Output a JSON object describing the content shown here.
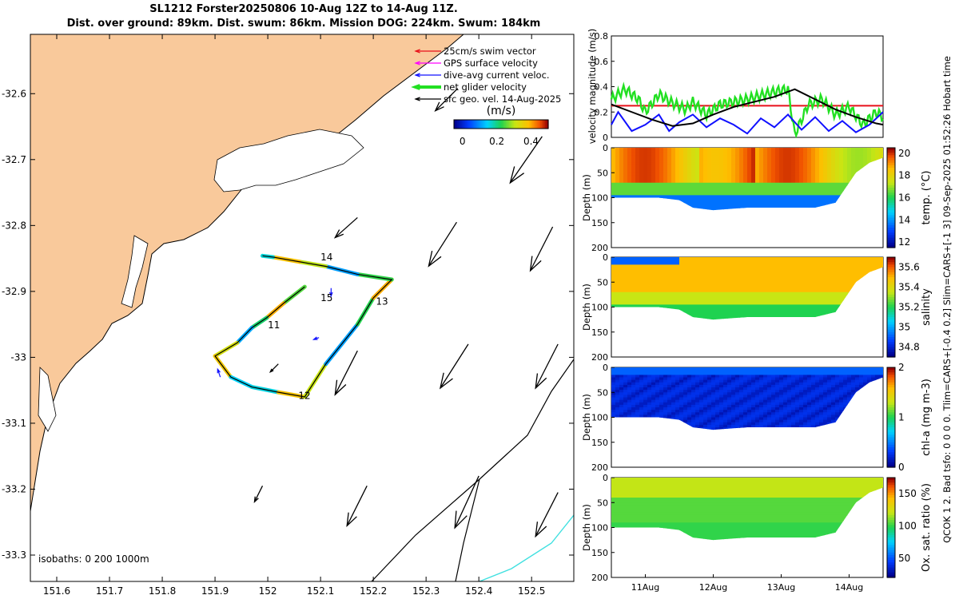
{
  "title": {
    "line1": "SL1212 Forster20250806 10-Aug 12Z to 14-Aug 11Z.",
    "line2": "Dist. over ground: 89km. Dist. swum: 86km. Mission DOG: 224km. Swum: 184km"
  },
  "side_note": "QCOK 1  2. Bad tsfo: 0  0  0  0. Tlim=CARS+[-0.4 0.2] Slim=CARS+[-1 3] 09-Sep-2025 01:52:26 Hobart time",
  "colors": {
    "land": "#f9c99b",
    "swim": "#e8101a",
    "gps": "#ff00ff",
    "dive": "#1010ff",
    "net": "#22e022",
    "geo": "#000000",
    "isobath1000": "#40e0e0"
  },
  "chart_data": [
    {
      "type": "map",
      "lon_ticks": [
        "151.6",
        "151.7",
        "151.8",
        "151.9",
        "152",
        "152.1",
        "152.2",
        "152.3",
        "152.4",
        "152.5"
      ],
      "lat_ticks": [
        "-32.6",
        "-32.7",
        "-32.8",
        "-32.9",
        "-33",
        "-33.1",
        "-33.2",
        "-33.3"
      ],
      "xlim": [
        151.55,
        152.58
      ],
      "ylim": [
        -33.34,
        -32.51
      ],
      "legend": [
        "25cm/s swim vector",
        "GPS surface velocity",
        "dive-avg current veloc.",
        "net glider velocity",
        "sfc geo. vel. 14-Aug-2025"
      ],
      "colorbar_label": "(m/s)",
      "colorbar_ticks": [
        "0",
        "0.2",
        "0.4"
      ],
      "colorbar_range": [
        -0.05,
        0.5
      ],
      "isobath_label": "isobaths: 0   200  1000m",
      "track_day_labels": [
        {
          "text": "14",
          "lon": 152.1,
          "lat": -32.853
        },
        {
          "text": "15",
          "lon": 152.1,
          "lat": -32.915
        },
        {
          "text": "13",
          "lon": 152.205,
          "lat": -32.92
        },
        {
          "text": "11",
          "lon": 152.0,
          "lat": -32.956
        },
        {
          "text": "12",
          "lon": 152.058,
          "lat": -33.063
        }
      ],
      "track": [
        [
          152.07,
          -32.893
        ],
        [
          152.03,
          -32.918
        ],
        [
          151.998,
          -32.94
        ],
        [
          151.97,
          -32.955
        ],
        [
          151.942,
          -32.978
        ],
        [
          151.9,
          -32.998
        ],
        [
          151.93,
          -33.03
        ],
        [
          151.97,
          -33.045
        ],
        [
          152.02,
          -33.053
        ],
        [
          152.07,
          -33.06
        ],
        [
          152.11,
          -33.01
        ],
        [
          152.17,
          -32.95
        ],
        [
          152.2,
          -32.91
        ],
        [
          152.235,
          -32.882
        ],
        [
          152.17,
          -32.874
        ],
        [
          152.11,
          -32.862
        ],
        [
          152.06,
          -32.855
        ],
        [
          152.01,
          -32.848
        ],
        [
          151.99,
          -32.846
        ]
      ],
      "geo_arrows": [
        [
          152.36,
          -32.592,
          -0.28,
          -0.28
        ],
        [
          152.52,
          -32.665,
          -0.4,
          -0.58
        ],
        [
          152.17,
          -32.788,
          -0.28,
          -0.25
        ],
        [
          152.358,
          -32.795,
          -0.35,
          -0.55
        ],
        [
          152.54,
          -32.802,
          -0.28,
          -0.55
        ],
        [
          152.17,
          -32.99,
          -0.28,
          -0.55
        ],
        [
          152.38,
          -32.98,
          -0.35,
          -0.55
        ],
        [
          152.55,
          -32.98,
          -0.28,
          -0.55
        ],
        [
          151.99,
          -33.195,
          -0.1,
          -0.2
        ],
        [
          152.188,
          -33.195,
          -0.25,
          -0.5
        ],
        [
          152.4,
          -33.18,
          -0.3,
          -0.65
        ],
        [
          152.55,
          -33.205,
          -0.28,
          -0.55
        ],
        [
          152.02,
          -33.01,
          -0.1,
          -0.1
        ]
      ]
    },
    {
      "type": "line",
      "ylabel": "velocity magnitude (m/s)",
      "ylim": [
        0,
        0.8
      ],
      "yticks": [
        "0",
        "0.2",
        "0.4",
        "0.6",
        "0.8"
      ],
      "xlim": [
        10.5,
        14.5
      ],
      "series": [
        {
          "name": "25cm/s swim vector",
          "color": "#e8101a",
          "x": [
            10.5,
            14.5
          ],
          "y": [
            0.25,
            0.25
          ]
        },
        {
          "name": "net glider velocity",
          "color": "#22e022",
          "x": [
            10.5,
            10.7,
            10.9,
            11.0,
            11.2,
            11.4,
            11.6,
            11.7,
            11.9,
            12.1,
            12.3,
            12.5,
            12.7,
            12.9,
            13.1,
            13.2,
            13.4,
            13.6,
            13.8,
            14.0,
            14.2,
            14.4,
            14.5
          ],
          "y": [
            0.3,
            0.38,
            0.3,
            0.2,
            0.34,
            0.27,
            0.22,
            0.28,
            0.18,
            0.26,
            0.28,
            0.3,
            0.33,
            0.36,
            0.38,
            0.02,
            0.26,
            0.3,
            0.18,
            0.24,
            0.1,
            0.2,
            0.16
          ]
        },
        {
          "name": "dive-avg current veloc.",
          "color": "#1010ff",
          "x": [
            10.5,
            10.6,
            10.8,
            11.0,
            11.2,
            11.35,
            11.5,
            11.7,
            11.9,
            12.1,
            12.3,
            12.5,
            12.7,
            12.9,
            13.1,
            13.3,
            13.5,
            13.7,
            13.9,
            14.1,
            14.3,
            14.5
          ],
          "y": [
            0.1,
            0.2,
            0.05,
            0.1,
            0.18,
            0.05,
            0.12,
            0.18,
            0.08,
            0.15,
            0.1,
            0.03,
            0.15,
            0.08,
            0.18,
            0.06,
            0.16,
            0.05,
            0.13,
            0.04,
            0.1,
            0.2
          ]
        },
        {
          "name": "GPS/sfc velocity",
          "color": "#000000",
          "x": [
            10.5,
            10.8,
            11.1,
            11.4,
            11.7,
            12.0,
            12.3,
            12.6,
            12.9,
            13.2,
            13.5,
            13.8,
            14.1,
            14.4,
            14.5
          ],
          "y": [
            0.26,
            0.2,
            0.14,
            0.09,
            0.11,
            0.18,
            0.24,
            0.28,
            0.32,
            0.38,
            0.3,
            0.22,
            0.16,
            0.11,
            0.1
          ]
        }
      ]
    },
    {
      "type": "heatmap",
      "ylabel": "Depth (m)",
      "cbar_label": "temp. (°C)",
      "cbar_ticks": [
        "12",
        "14",
        "16",
        "18",
        "20"
      ],
      "clim": [
        11.5,
        20.5
      ],
      "ylim": [
        200,
        0
      ],
      "yticks": [
        "0",
        "50",
        "100",
        "150",
        "200"
      ],
      "surface": [
        [
          10.5,
          0
        ],
        [
          14.1,
          0
        ],
        [
          14.3,
          10
        ],
        [
          14.5,
          0
        ]
      ],
      "bottom": [
        [
          10.5,
          100
        ],
        [
          11.2,
          100
        ],
        [
          11.5,
          105
        ],
        [
          11.7,
          120
        ],
        [
          12.0,
          125
        ],
        [
          12.5,
          120
        ],
        [
          13.0,
          120
        ],
        [
          13.5,
          120
        ],
        [
          13.8,
          110
        ],
        [
          14.1,
          50
        ],
        [
          14.3,
          30
        ],
        [
          14.5,
          20
        ]
      ]
    },
    {
      "type": "heatmap",
      "ylabel": "Depth (m)",
      "cbar_label": "salinity",
      "cbar_ticks": [
        "34.8",
        "35",
        "35.2",
        "35.4",
        "35.6"
      ],
      "clim": [
        34.7,
        35.7
      ],
      "ylim": [
        200,
        0
      ],
      "yticks": [
        "0",
        "50",
        "100",
        "150",
        "200"
      ],
      "surface": [
        [
          10.5,
          0
        ],
        [
          14.1,
          0
        ],
        [
          14.3,
          10
        ],
        [
          14.5,
          0
        ]
      ],
      "bottom": [
        [
          10.5,
          100
        ],
        [
          11.2,
          100
        ],
        [
          11.5,
          105
        ],
        [
          11.7,
          120
        ],
        [
          12.0,
          125
        ],
        [
          12.5,
          120
        ],
        [
          13.0,
          120
        ],
        [
          13.5,
          120
        ],
        [
          13.8,
          110
        ],
        [
          14.1,
          50
        ],
        [
          14.3,
          30
        ],
        [
          14.5,
          20
        ]
      ]
    },
    {
      "type": "heatmap",
      "ylabel": "Depth (m)",
      "cbar_label": "chl-a (mg m-3)",
      "cbar_ticks": [
        "0",
        "1",
        "2"
      ],
      "clim": [
        0,
        2
      ],
      "ylim": [
        200,
        0
      ],
      "yticks": [
        "0",
        "50",
        "100",
        "150",
        "200"
      ],
      "surface": [
        [
          10.5,
          0
        ],
        [
          14.1,
          0
        ],
        [
          14.3,
          10
        ],
        [
          14.5,
          0
        ]
      ],
      "bottom": [
        [
          10.5,
          100
        ],
        [
          11.2,
          100
        ],
        [
          11.5,
          105
        ],
        [
          11.7,
          120
        ],
        [
          12.0,
          125
        ],
        [
          12.5,
          120
        ],
        [
          13.0,
          120
        ],
        [
          13.5,
          120
        ],
        [
          13.8,
          110
        ],
        [
          14.1,
          50
        ],
        [
          14.3,
          30
        ],
        [
          14.5,
          20
        ]
      ]
    },
    {
      "type": "heatmap",
      "ylabel": "Depth (m)",
      "cbar_label": "Ox. sat. ratio (%)",
      "cbar_ticks": [
        "50",
        "100",
        "150"
      ],
      "clim": [
        20,
        175
      ],
      "ylim": [
        200,
        0
      ],
      "yticks": [
        "0",
        "50",
        "100",
        "150",
        "200"
      ],
      "xticks": [
        "11Aug",
        "12Aug",
        "13Aug",
        "14Aug"
      ],
      "surface": [
        [
          10.5,
          0
        ],
        [
          14.1,
          0
        ],
        [
          14.3,
          10
        ],
        [
          14.5,
          0
        ]
      ],
      "bottom": [
        [
          10.5,
          100
        ],
        [
          11.2,
          100
        ],
        [
          11.5,
          105
        ],
        [
          11.7,
          120
        ],
        [
          12.0,
          125
        ],
        [
          12.5,
          120
        ],
        [
          13.0,
          120
        ],
        [
          13.5,
          120
        ],
        [
          13.8,
          110
        ],
        [
          14.1,
          50
        ],
        [
          14.3,
          30
        ],
        [
          14.5,
          20
        ]
      ]
    }
  ]
}
